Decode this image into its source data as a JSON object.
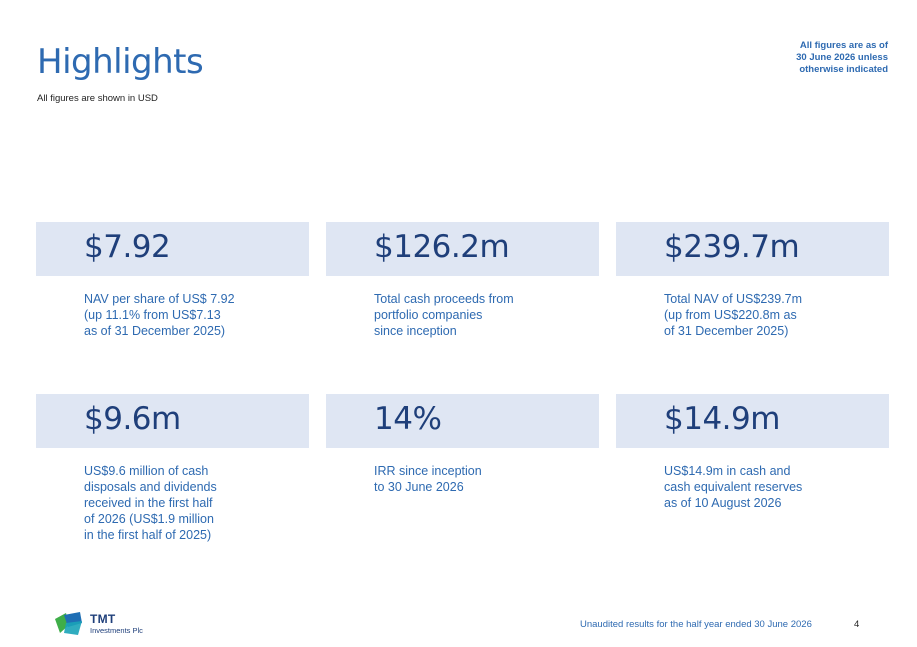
{
  "header": {
    "title": "Highlights",
    "subtitle": "All figures are shown in USD",
    "note_lines": [
      "All figures are as of",
      "30 June 2026 unless",
      "otherwise indicated"
    ]
  },
  "tiles": [
    {
      "value": "$7.92",
      "desc": [
        "NAV per share of US$ 7.92",
        "(up 11.1% from US$7.13",
        "as of 31 December 2025)"
      ]
    },
    {
      "value": "$126.2m",
      "desc": [
        "Total cash proceeds from",
        "portfolio companies",
        "since inception"
      ]
    },
    {
      "value": "$239.7m",
      "desc": [
        "Total NAV of US$239.7m",
        "(up from US$220.8m as",
        "of 31 December 2025)"
      ]
    },
    {
      "value": "$9.6m",
      "desc": [
        "US$9.6 million of cash",
        "disposals and dividends",
        "received in the first half",
        "of 2026 (US$1.9 million",
        "in the first half of 2025)"
      ]
    },
    {
      "value": "14%",
      "desc": [
        "IRR since inception",
        "to 30 June 2026"
      ]
    },
    {
      "value": "$14.9m",
      "desc": [
        "US$14.9m in cash and",
        "cash equivalent reserves",
        "as of 10 August 2026"
      ]
    }
  ],
  "footer": {
    "logo_text": "TMT",
    "logo_subtext": "Investments Plc",
    "caption": "Unaudited results for the half year ended 30 June 2026",
    "page_number": "4"
  },
  "colors": {
    "accent": "#2e6ab1",
    "value_text": "#1f3f7a",
    "tile_band": "#dfe6f3",
    "logo_green": "#3fae49",
    "logo_blue": "#1f6fb5",
    "logo_teal": "#1aa3b8"
  }
}
